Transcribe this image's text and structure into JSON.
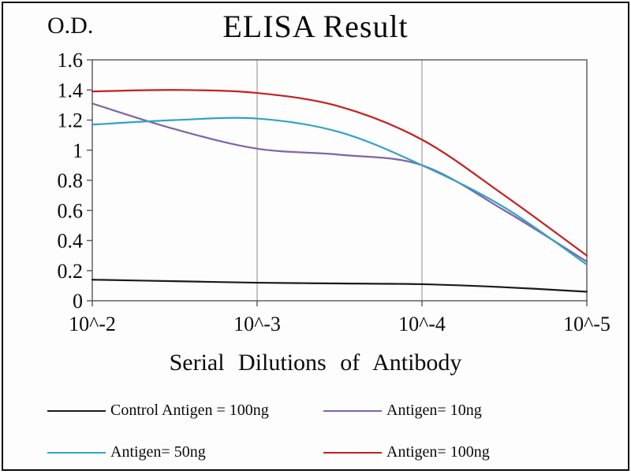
{
  "chart_data": {
    "type": "line",
    "title": "ELISA Result",
    "ylabel": "O.D.",
    "xlabel": "Serial Dilutions of Antibody",
    "x_tick_labels": [
      "10^-2",
      "10^-3",
      "10^-4",
      "10^-5"
    ],
    "x_tick_log": [
      -2,
      -3,
      -4,
      -5
    ],
    "y_tick_labels": [
      "0",
      "0.2",
      "0.4",
      "0.6",
      "0.8",
      "1",
      "1.2",
      "1.4",
      "1.6"
    ],
    "y_tick_values": [
      0,
      0.2,
      0.4,
      0.6,
      0.8,
      1,
      1.2,
      1.4,
      1.6
    ],
    "ylim": [
      0,
      1.6
    ],
    "xlog_range": [
      -2,
      -5
    ],
    "grid": "vertical-only",
    "legend_position": "bottom",
    "x": [
      -2,
      -2.5,
      -3,
      -3.5,
      -4,
      -4.5,
      -5
    ],
    "series": [
      {
        "name": "Control Antigen = 100ng",
        "color": "#1a1a1a",
        "values": [
          0.14,
          0.13,
          0.12,
          0.115,
          0.11,
          0.09,
          0.06
        ]
      },
      {
        "name": "Antigen= 10ng",
        "color": "#8064a2",
        "values": [
          1.31,
          1.14,
          1.01,
          0.97,
          0.9,
          0.6,
          0.26
        ]
      },
      {
        "name": "Antigen= 50ng",
        "color": "#31a2c6",
        "values": [
          1.17,
          1.2,
          1.21,
          1.12,
          0.9,
          0.62,
          0.24
        ]
      },
      {
        "name": "Antigen= 100ng",
        "color": "#c52020",
        "values": [
          1.39,
          1.4,
          1.38,
          1.29,
          1.07,
          0.7,
          0.3
        ]
      }
    ]
  }
}
